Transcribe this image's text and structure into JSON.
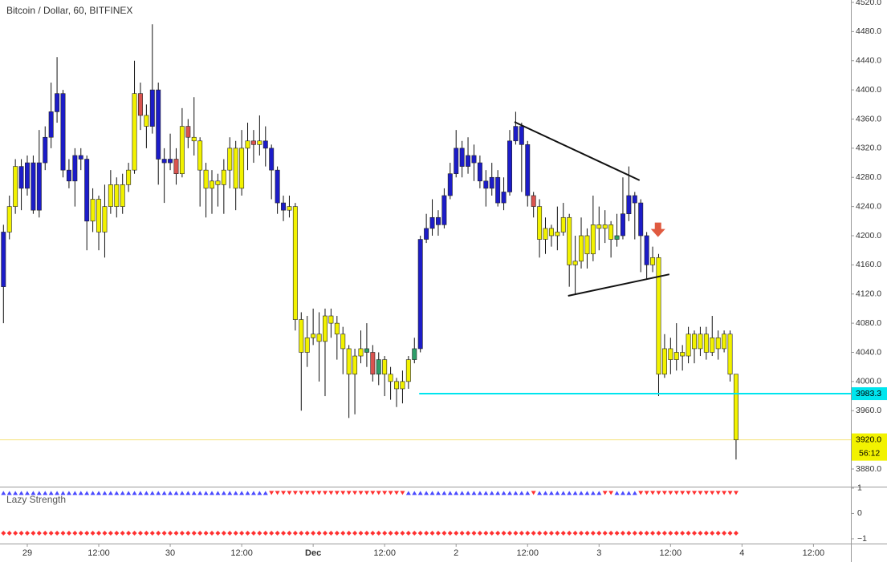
{
  "chart_data": [
    {
      "type": "candlestick",
      "title": "Bitcoin / Dollar, 60, BITFINEX",
      "x": [
        -4,
        -3,
        -2,
        -1,
        0,
        1,
        2,
        3,
        4,
        5,
        6,
        7,
        8,
        9,
        10,
        11,
        12,
        13,
        14,
        15,
        16,
        17,
        18,
        19,
        20,
        21,
        22,
        23,
        24,
        25,
        26,
        27,
        28,
        29,
        30,
        31,
        32,
        33,
        34,
        35,
        36,
        37,
        38,
        39,
        40,
        41,
        42,
        43,
        44,
        45,
        46,
        47,
        48,
        49,
        50,
        51,
        52,
        53,
        54,
        55,
        56,
        57,
        58,
        59,
        60,
        61,
        62,
        63,
        64,
        65,
        66,
        67,
        68,
        69,
        70,
        71,
        72,
        73,
        74,
        75,
        76,
        77,
        78,
        79,
        80,
        81,
        82,
        83,
        84,
        85,
        86,
        87,
        88,
        89,
        90,
        91,
        92,
        93,
        94,
        95,
        96,
        97,
        98,
        99,
        100,
        101,
        102,
        103,
        104,
        105,
        106,
        107,
        108,
        109,
        110,
        111,
        112,
        113,
        114,
        115,
        116,
        117,
        118,
        119
      ],
      "open": [
        4130,
        4205,
        4240,
        4295,
        4265,
        4300,
        4235,
        4300,
        4335,
        4370,
        4395,
        4290,
        4275,
        4310,
        4305,
        4220,
        4250,
        4205,
        4240,
        4270,
        4240,
        4270,
        4290,
        4395,
        4365,
        4350,
        4400,
        4305,
        4300,
        4305,
        4285,
        4350,
        4335,
        4330,
        4290,
        4265,
        4275,
        4270,
        4290,
        4320,
        4265,
        4320,
        4330,
        4325,
        4330,
        4320,
        4290,
        4245,
        4235,
        4240,
        4085,
        4040,
        4060,
        4065,
        4055,
        4090,
        4080,
        4065,
        4045,
        4010,
        4035,
        4045,
        4040,
        4010,
        4030,
        4010,
        4000,
        3990,
        4000,
        4030,
        4045,
        4195,
        4210,
        4225,
        4215,
        4255,
        4285,
        4320,
        4295,
        4310,
        4300,
        4275,
        4265,
        4280,
        4245,
        4260,
        4330,
        4350,
        4325,
        4255,
        4240,
        4195,
        4210,
        4200,
        4205,
        4225,
        4160,
        4165,
        4200,
        4175,
        4215,
        4210,
        4215,
        4195,
        4200,
        4230,
        4255,
        4245,
        4200,
        4160,
        4170,
        4010,
        4045,
        4030,
        4040,
        4035,
        4065,
        4045,
        4065,
        4040,
        4060,
        4045,
        4065,
        4010
      ],
      "high": [
        4215,
        4255,
        4305,
        4305,
        4310,
        4310,
        4345,
        4350,
        4410,
        4445,
        4400,
        4305,
        4320,
        4320,
        4310,
        4265,
        4255,
        4270,
        4290,
        4280,
        4285,
        4300,
        4440,
        4410,
        4380,
        4490,
        4410,
        4320,
        4340,
        4320,
        4375,
        4360,
        4390,
        4335,
        4300,
        4290,
        4285,
        4305,
        4335,
        4330,
        4345,
        4355,
        4345,
        4365,
        4350,
        4325,
        4295,
        4255,
        4255,
        4245,
        4095,
        4090,
        4100,
        4095,
        4100,
        4100,
        4090,
        4075,
        4050,
        4045,
        4070,
        4080,
        4050,
        4040,
        4035,
        4020,
        4005,
        4015,
        4035,
        4060,
        4200,
        4230,
        4250,
        4235,
        4265,
        4300,
        4345,
        4330,
        4335,
        4325,
        4310,
        4290,
        4300,
        4290,
        4280,
        4345,
        4370,
        4355,
        4330,
        4260,
        4250,
        4225,
        4215,
        4240,
        4245,
        4230,
        4200,
        4225,
        4210,
        4255,
        4240,
        4235,
        4220,
        4230,
        4280,
        4295,
        4260,
        4250,
        4205,
        4185,
        4175,
        4065,
        4060,
        4080,
        4050,
        4075,
        4070,
        4075,
        4075,
        4090,
        4070,
        4070,
        4070,
        4010
      ],
      "low": [
        4080,
        4195,
        4230,
        4235,
        4255,
        4230,
        4225,
        4290,
        4320,
        4355,
        4280,
        4265,
        4240,
        4290,
        4180,
        4205,
        4180,
        4170,
        4230,
        4225,
        4230,
        4260,
        4285,
        4345,
        4320,
        4340,
        4270,
        4245,
        4290,
        4270,
        4280,
        4320,
        4310,
        4240,
        4225,
        4230,
        4240,
        4230,
        4265,
        4235,
        4255,
        4290,
        4300,
        4310,
        4295,
        4250,
        4230,
        4220,
        4225,
        4070,
        3960,
        4020,
        4050,
        4000,
        3980,
        4060,
        4030,
        4010,
        3950,
        3955,
        4025,
        4020,
        4000,
        3995,
        3980,
        3975,
        3965,
        3970,
        3990,
        4025,
        4040,
        4190,
        4200,
        4200,
        4210,
        4250,
        4280,
        4280,
        4285,
        4275,
        4265,
        4240,
        4255,
        4240,
        4235,
        4255,
        4325,
        4260,
        4240,
        4225,
        4170,
        4175,
        4185,
        4180,
        4200,
        4130,
        4120,
        4155,
        4155,
        4165,
        4180,
        4190,
        4170,
        4185,
        4195,
        4220,
        4195,
        4150,
        4140,
        4150,
        3980,
        4005,
        4010,
        4015,
        4015,
        4025,
        4025,
        4035,
        4030,
        4035,
        4030,
        4040,
        4000,
        3893
      ],
      "close": [
        4205,
        4240,
        4295,
        4265,
        4300,
        4235,
        4300,
        4335,
        4370,
        4395,
        4290,
        4275,
        4310,
        4305,
        4220,
        4250,
        4205,
        4240,
        4270,
        4240,
        4270,
        4290,
        4395,
        4365,
        4350,
        4400,
        4305,
        4300,
        4305,
        4285,
        4350,
        4335,
        4330,
        4290,
        4265,
        4275,
        4270,
        4290,
        4320,
        4265,
        4320,
        4330,
        4325,
        4330,
        4320,
        4290,
        4245,
        4235,
        4240,
        4085,
        4040,
        4060,
        4065,
        4055,
        4090,
        4080,
        4065,
        4045,
        4010,
        4035,
        4045,
        4040,
        4010,
        4030,
        4010,
        4000,
        3990,
        4000,
        4030,
        4045,
        4195,
        4210,
        4225,
        4215,
        4255,
        4285,
        4320,
        4295,
        4310,
        4300,
        4275,
        4265,
        4280,
        4245,
        4260,
        4330,
        4350,
        4325,
        4255,
        4240,
        4195,
        4210,
        4200,
        4205,
        4225,
        4160,
        4165,
        4200,
        4175,
        4215,
        4210,
        4215,
        4195,
        4200,
        4230,
        4255,
        4245,
        4200,
        4160,
        4170,
        4010,
        4045,
        4030,
        4040,
        4035,
        4065,
        4045,
        4065,
        4040,
        4060,
        4045,
        4065,
        4010,
        3920
      ],
      "colors": [
        "#1c1cc8",
        "#f2f200",
        "#f2f200",
        "#1c1cc8",
        "#1c1cc8",
        "#1c1cc8",
        "#1c1cc8",
        "#1c1cc8",
        "#1c1cc8",
        "#1c1cc8",
        "#1c1cc8",
        "#1c1cc8",
        "#1c1cc8",
        "#1c1cc8",
        "#1c1cc8",
        "#f2f200",
        "#f2f200",
        "#f2f200",
        "#f2f200",
        "#f2f200",
        "#f2f200",
        "#f2f200",
        "#f2f200",
        "#d9534f",
        "#f2f200",
        "#1c1cc8",
        "#1c1cc8",
        "#1c1cc8",
        "#1c1cc8",
        "#d9534f",
        "#f2f200",
        "#d9534f",
        "#f2f200",
        "#f2f200",
        "#f2f200",
        "#f2f200",
        "#f2f200",
        "#f2f200",
        "#f2f200",
        "#f2f200",
        "#f2f200",
        "#f2f200",
        "#d9534f",
        "#f2f200",
        "#1c1cc8",
        "#1c1cc8",
        "#1c1cc8",
        "#1c1cc8",
        "#f2f200",
        "#f2f200",
        "#f2f200",
        "#f2f200",
        "#f2f200",
        "#f2f200",
        "#f2f200",
        "#f2f200",
        "#f2f200",
        "#f2f200",
        "#f2f200",
        "#f2f200",
        "#f2f200",
        "#2e9e6a",
        "#d9534f",
        "#2e9e6a",
        "#f2f200",
        "#f2f200",
        "#f2f200",
        "#f2f200",
        "#f2f200",
        "#2e9e6a",
        "#1c1cc8",
        "#1c1cc8",
        "#1c1cc8",
        "#1c1cc8",
        "#1c1cc8",
        "#1c1cc8",
        "#1c1cc8",
        "#1c1cc8",
        "#1c1cc8",
        "#1c1cc8",
        "#1c1cc8",
        "#1c1cc8",
        "#1c1cc8",
        "#1c1cc8",
        "#1c1cc8",
        "#1c1cc8",
        "#1c1cc8",
        "#1c1cc8",
        "#1c1cc8",
        "#d9534f",
        "#f2f200",
        "#f2f200",
        "#f2f200",
        "#f2f200",
        "#f2f200",
        "#f2f200",
        "#f2f200",
        "#f2f200",
        "#f2f200",
        "#f2f200",
        "#f2f200",
        "#f2f200",
        "#f2f200",
        "#2e9e6a",
        "#1c1cc8",
        "#1c1cc8",
        "#1c1cc8",
        "#1c1cc8",
        "#1c1cc8",
        "#f2f200",
        "#f2f200",
        "#f2f200",
        "#f2f200",
        "#f2f200",
        "#f2f200",
        "#f2f200",
        "#f2f200",
        "#f2f200",
        "#f2f200",
        "#f2f200",
        "#f2f200",
        "#f2f200",
        "#f2f200",
        "#f2f200"
      ],
      "xlim": [
        -4.58,
        138.28
      ],
      "xticks": [
        {
          "value": 0,
          "label": "29"
        },
        {
          "value": 12,
          "label": "12:00"
        },
        {
          "value": 24,
          "label": "30"
        },
        {
          "value": 36,
          "label": "12:00"
        },
        {
          "value": 48,
          "label": "Dec"
        },
        {
          "value": 60,
          "label": "12:00"
        },
        {
          "value": 72,
          "label": "2"
        },
        {
          "value": 84,
          "label": "12:00"
        },
        {
          "value": 96,
          "label": "3"
        },
        {
          "value": 108,
          "label": "12:00"
        },
        {
          "value": 120,
          "label": "4"
        },
        {
          "value": 132,
          "label": "12:00"
        }
      ],
      "ylim": [
        3855.8,
        4523.3
      ],
      "yticks": [
        {
          "value": 3880,
          "label": "3880.0"
        },
        {
          "value": 3920,
          "label": "3920.0"
        },
        {
          "value": 3960,
          "label": "3960.0"
        },
        {
          "value": 4000,
          "label": "4000.0"
        },
        {
          "value": 4040,
          "label": "4040.0"
        },
        {
          "value": 4080,
          "label": "4080.0"
        },
        {
          "value": 4120,
          "label": "4120.0"
        },
        {
          "value": 4160,
          "label": "4160.0"
        },
        {
          "value": 4200,
          "label": "4200.0"
        },
        {
          "value": 4240,
          "label": "4240.0"
        },
        {
          "value": 4280,
          "label": "4280.0"
        },
        {
          "value": 4320,
          "label": "4320.0"
        },
        {
          "value": 4360,
          "label": "4360.0"
        },
        {
          "value": 4400,
          "label": "4400.0"
        },
        {
          "value": 4440,
          "label": "4440.0"
        },
        {
          "value": 4480,
          "label": "4480.0"
        },
        {
          "value": 4520,
          "label": "4520.0"
        }
      ],
      "grid": false,
      "level": {
        "value": 3983.3,
        "label": "3983.3",
        "from": 65.8,
        "color": "#00e5ee"
      },
      "last_price": {
        "value": 3920,
        "label": "3920.0",
        "color": "#f2f200"
      },
      "countdown": "56:12",
      "trend_lines": [
        {
          "x": [
            81.8,
            102.8
          ],
          "y": [
            4356,
            4276
          ]
        },
        {
          "x": [
            90.8,
            107.8
          ],
          "y": [
            4117.5,
            4147
          ]
        }
      ],
      "arrow": {
        "x": 105.9,
        "y": 4207,
        "color": "#e05a40"
      }
    },
    {
      "type": "indicator",
      "title": "Lazy Strength",
      "values": [
        1,
        1,
        1,
        1,
        1,
        1,
        1,
        1,
        1,
        1,
        1,
        1,
        1,
        1,
        1,
        1,
        1,
        1,
        1,
        1,
        1,
        1,
        1,
        1,
        1,
        1,
        1,
        1,
        1,
        1,
        1,
        1,
        1,
        1,
        1,
        1,
        1,
        1,
        1,
        1,
        1,
        1,
        1,
        1,
        1,
        -1,
        -1,
        -1,
        -1,
        -1,
        -1,
        -1,
        -1,
        -1,
        -1,
        -1,
        -1,
        -1,
        -1,
        -1,
        -1,
        -1,
        -1,
        -1,
        -1,
        -1,
        -1,
        -1,
        1,
        1,
        1,
        1,
        1,
        1,
        1,
        1,
        1,
        1,
        1,
        1,
        1,
        1,
        1,
        1,
        1,
        1,
        1,
        1,
        1,
        -1,
        1,
        1,
        1,
        1,
        1,
        1,
        1,
        1,
        1,
        1,
        1,
        -1,
        -1,
        1,
        1,
        1,
        1,
        -1,
        -1,
        -1,
        -1,
        -1,
        -1,
        -1,
        -1,
        -1,
        -1,
        -1,
        -1,
        -1,
        -1,
        -1,
        -1,
        -1
      ],
      "up_color": "#4a4aff",
      "down_color": "#ff3030",
      "ylim": [
        -1.19,
        1.06
      ],
      "yticks": [
        1,
        0,
        {
          "value": -1,
          "label": "−1"
        }
      ]
    }
  ]
}
